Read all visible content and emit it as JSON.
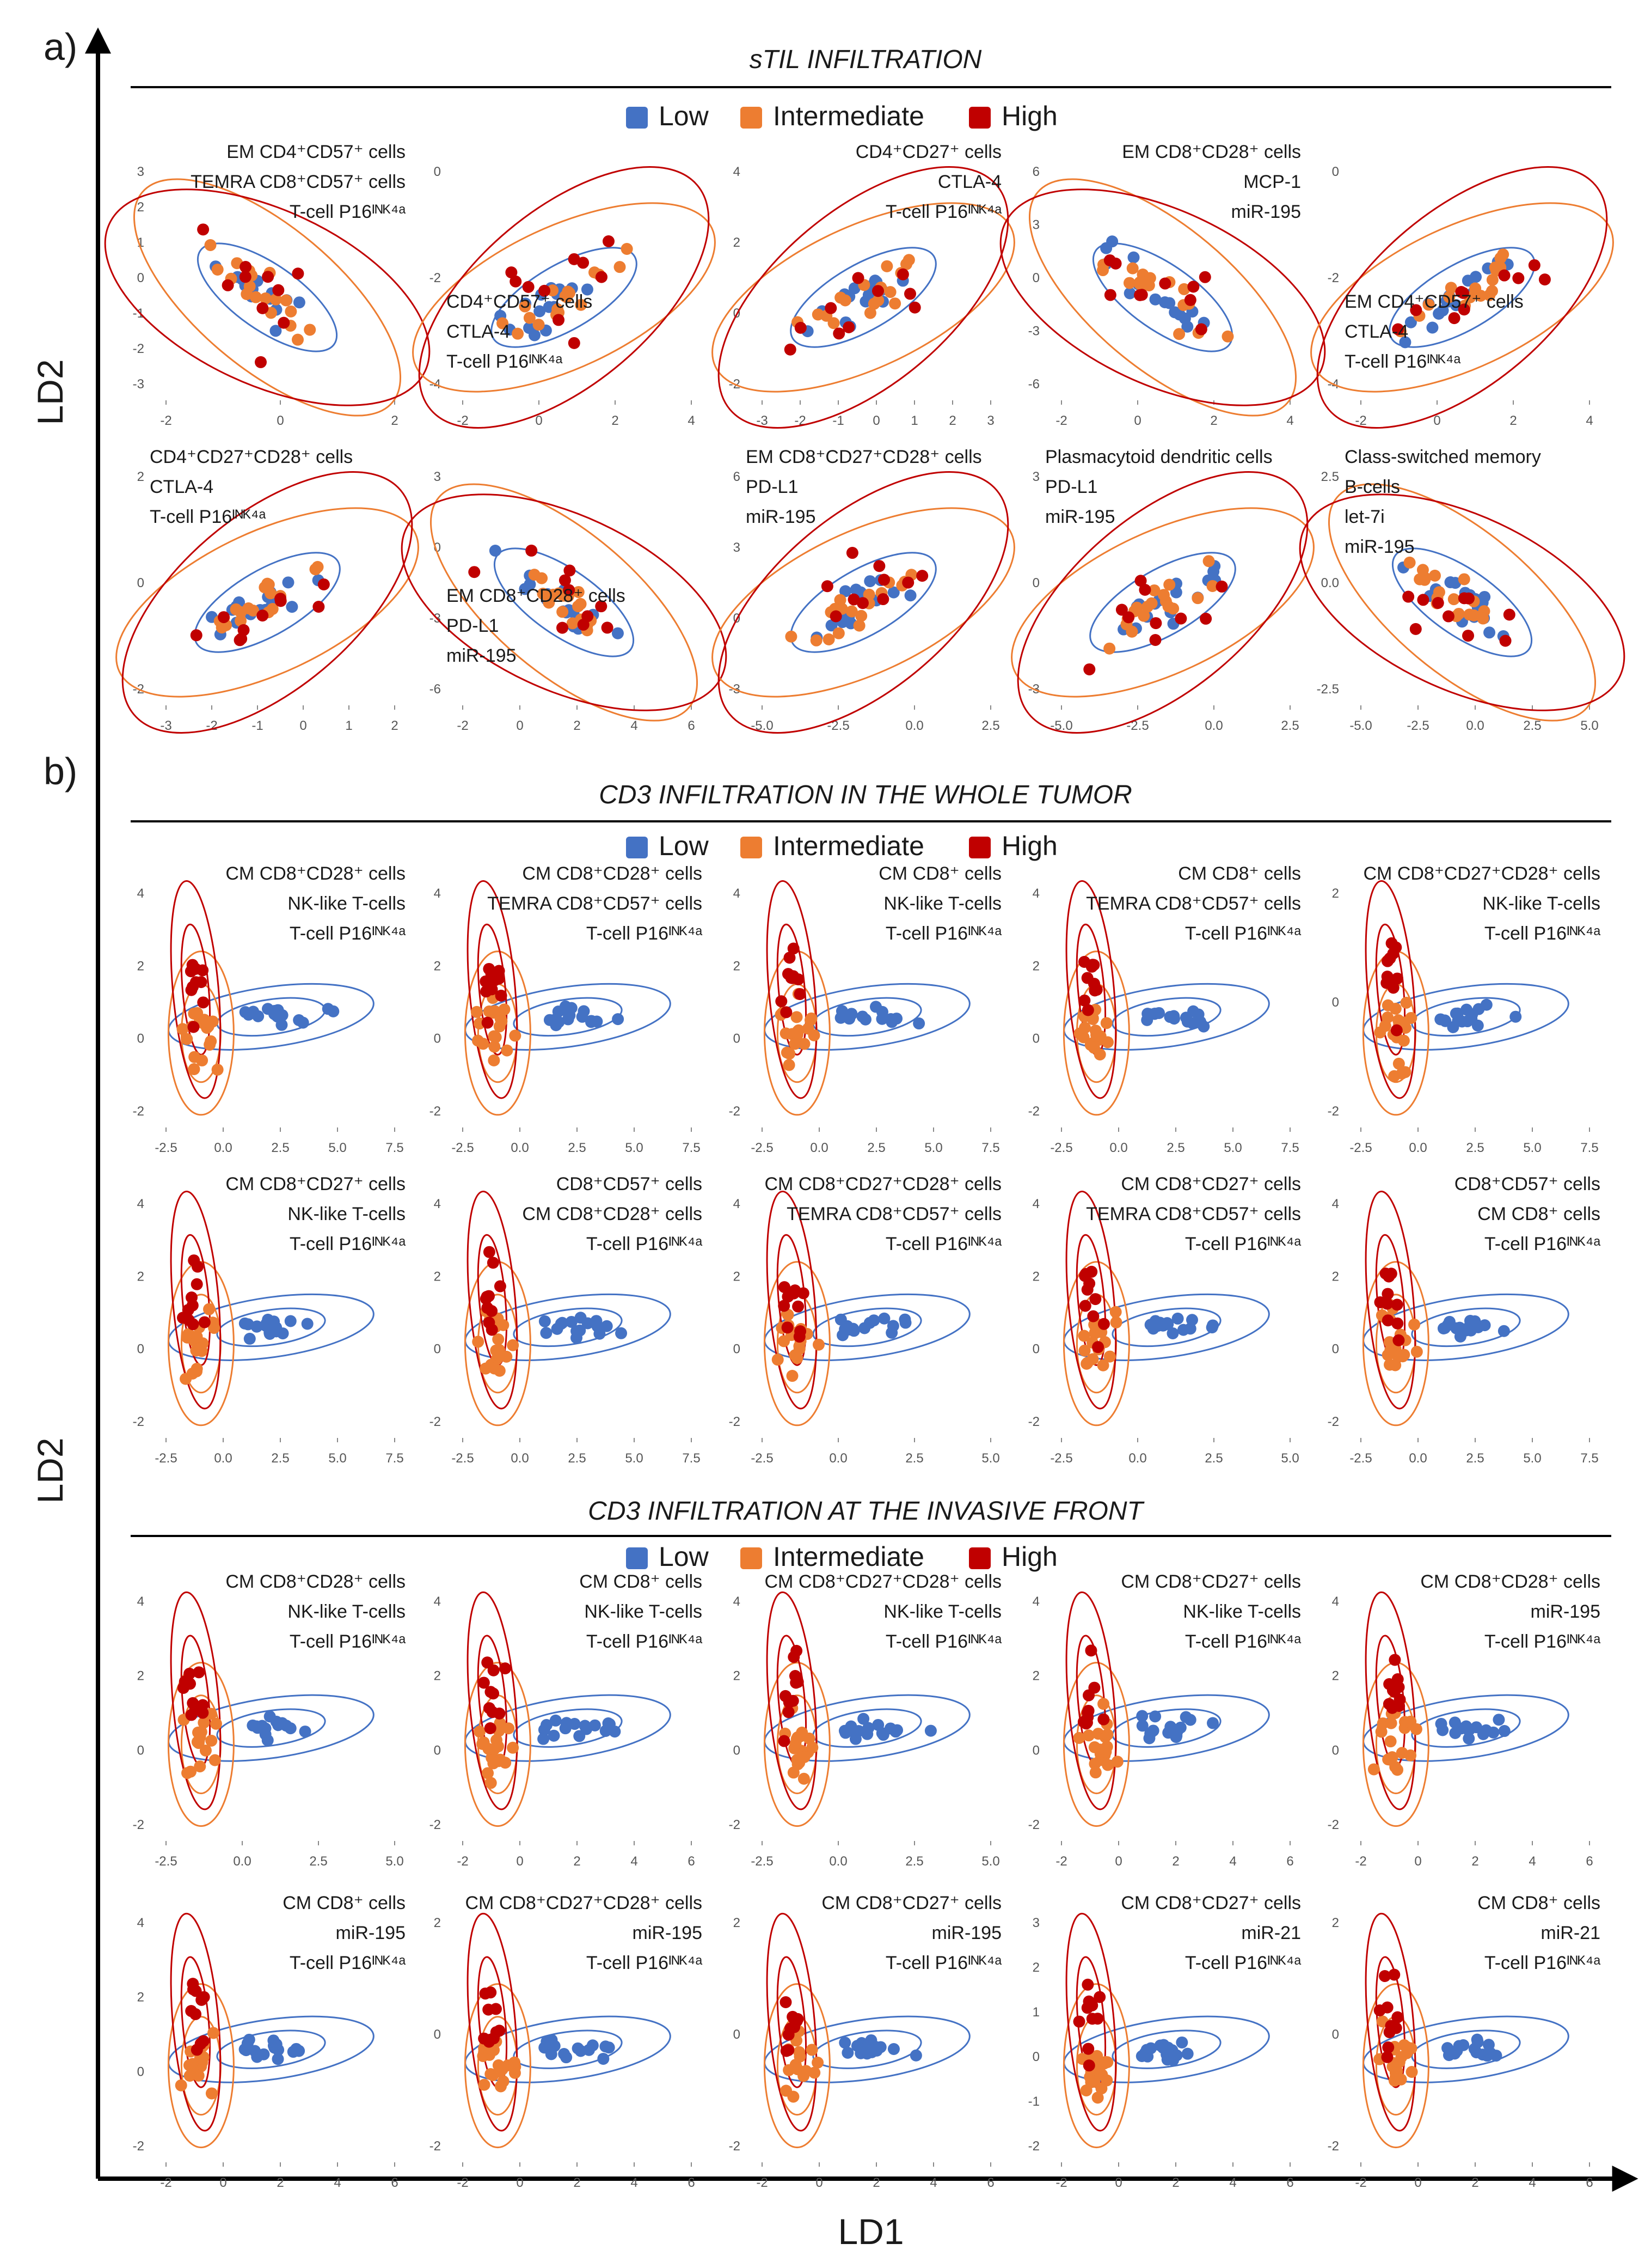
{
  "figure": {
    "axis_x_label": "LD1",
    "axis_y_label": "LD2",
    "legend_labels": [
      "Low",
      "Intermediate",
      "High"
    ],
    "colors": {
      "low": "#4472C4",
      "intermediate": "#ED7D31",
      "high": "#C00000",
      "axis": "#000000",
      "text": "#1a1a1a",
      "tick": "#555555"
    }
  },
  "chart_data": [
    {
      "panel": "a)",
      "title": "sTIL INFILTRATION",
      "type": "scatter",
      "charts": [
        {
          "labels": [
            "EM CD4⁺CD57⁺ cells",
            "TEMRA CD8⁺CD57⁺ cells",
            "T-cell P16ᴵᴺᴷ⁴ᵃ"
          ],
          "xticks": [
            "-2",
            "0",
            "2"
          ],
          "yticks": [
            "3",
            "2",
            "1",
            "0",
            "-1",
            "-2",
            "-3"
          ]
        },
        {
          "labels": [
            "CD4⁺CD57⁺ cells",
            "CTLA-4",
            "T-cell P16ᴵᴺᴷ⁴ᵃ"
          ],
          "xticks": [
            "-2",
            "0",
            "2",
            "4"
          ],
          "yticks": [
            "0",
            "-2",
            "-4"
          ]
        },
        {
          "labels": [
            "CD4⁺CD27⁺ cells",
            "CTLA-4",
            "T-cell P16ᴵᴺᴷ⁴ᵃ"
          ],
          "xticks": [
            "-3",
            "-2",
            "-1",
            "0",
            "1",
            "2",
            "3"
          ],
          "yticks": [
            "4",
            "2",
            "0",
            "-2"
          ]
        },
        {
          "labels": [
            "EM CD8⁺CD28⁺ cells",
            "MCP-1",
            "miR-195"
          ],
          "xticks": [
            "-2",
            "0",
            "2",
            "4"
          ],
          "yticks": [
            "6",
            "3",
            "0",
            "-3",
            "-6"
          ]
        },
        {
          "labels": [
            "EM CD4⁺CD57⁺ cells",
            "CTLA-4",
            "T-cell P16ᴵᴺᴷ⁴ᵃ"
          ],
          "xticks": [
            "-2",
            "0",
            "2",
            "4"
          ],
          "yticks": [
            "0",
            "-2",
            "-4"
          ]
        },
        {
          "labels": [
            "CD4⁺CD27⁺CD28⁺ cells",
            "CTLA-4",
            "T-cell P16ᴵᴺᴷ⁴ᵃ"
          ],
          "xticks": [
            "-3",
            "-2",
            "-1",
            "0",
            "1",
            "2"
          ],
          "yticks": [
            "2",
            "0",
            "-2"
          ]
        },
        {
          "labels": [
            "EM CD8⁺CD28⁺ cells",
            "PD-L1",
            "miR-195"
          ],
          "xticks": [
            "-2",
            "0",
            "2",
            "4",
            "6"
          ],
          "yticks": [
            "3",
            "0",
            "-3",
            "-6"
          ]
        },
        {
          "labels": [
            "EM CD8⁺CD27⁺CD28⁺ cells",
            "PD-L1",
            "miR-195"
          ],
          "xticks": [
            "-5.0",
            "-2.5",
            "0.0",
            "2.5"
          ],
          "yticks": [
            "6",
            "3",
            "0",
            "-3"
          ]
        },
        {
          "labels": [
            "Plasmacytoid dendritic cells",
            "PD-L1",
            "miR-195"
          ],
          "xticks": [
            "-5.0",
            "-2.5",
            "0.0",
            "2.5"
          ],
          "yticks": [
            "3",
            "0",
            "-3"
          ]
        },
        {
          "labels": [
            "Class-switched memory",
            "B-cells",
            "let-7i",
            "miR-195"
          ],
          "xticks": [
            "-5.0",
            "-2.5",
            "0.0",
            "2.5",
            "5.0"
          ],
          "yticks": [
            "2.5",
            "0.0",
            "-2.5"
          ]
        }
      ]
    },
    {
      "panel": "b)",
      "title": "CD3 INFILTRATION IN THE WHOLE TUMOR",
      "type": "scatter",
      "charts": [
        {
          "labels": [
            "CM CD8⁺CD28⁺ cells",
            "NK-like T-cells",
            "T-cell P16ᴵᴺᴷ⁴ᵃ"
          ],
          "xticks": [
            "-2.5",
            "0.0",
            "2.5",
            "5.0",
            "7.5"
          ],
          "yticks": [
            "4",
            "2",
            "0",
            "-2"
          ]
        },
        {
          "labels": [
            "CM CD8⁺CD28⁺ cells",
            "TEMRA CD8⁺CD57⁺ cells",
            "T-cell P16ᴵᴺᴷ⁴ᵃ"
          ],
          "xticks": [
            "-2.5",
            "0.0",
            "2.5",
            "5.0",
            "7.5"
          ],
          "yticks": [
            "4",
            "2",
            "0",
            "-2"
          ]
        },
        {
          "labels": [
            "CM CD8⁺ cells",
            "NK-like T-cells",
            "T-cell P16ᴵᴺᴷ⁴ᵃ"
          ],
          "xticks": [
            "-2.5",
            "0.0",
            "2.5",
            "5.0",
            "7.5"
          ],
          "yticks": [
            "4",
            "2",
            "0",
            "-2"
          ]
        },
        {
          "labels": [
            "CM CD8⁺ cells",
            "TEMRA CD8⁺CD57⁺ cells",
            "T-cell P16ᴵᴺᴷ⁴ᵃ"
          ],
          "xticks": [
            "-2.5",
            "0.0",
            "2.5",
            "5.0",
            "7.5"
          ],
          "yticks": [
            "4",
            "2",
            "0",
            "-2"
          ]
        },
        {
          "labels": [
            "CM CD8⁺CD27⁺CD28⁺ cells",
            "NK-like T-cells",
            "T-cell P16ᴵᴺᴷ⁴ᵃ"
          ],
          "xticks": [
            "-2.5",
            "0.0",
            "2.5",
            "5.0",
            "7.5"
          ],
          "yticks": [
            "2",
            "0",
            "-2"
          ]
        },
        {
          "labels": [
            "CM CD8⁺CD27⁺ cells",
            "NK-like T-cells",
            "T-cell P16ᴵᴺᴷ⁴ᵃ"
          ],
          "xticks": [
            "-2.5",
            "0.0",
            "2.5",
            "5.0",
            "7.5"
          ],
          "yticks": [
            "4",
            "2",
            "0",
            "-2"
          ]
        },
        {
          "labels": [
            "CD8⁺CD57⁺ cells",
            "CM CD8⁺CD28⁺ cells",
            "T-cell P16ᴵᴺᴷ⁴ᵃ"
          ],
          "xticks": [
            "-2.5",
            "0.0",
            "2.5",
            "5.0",
            "7.5"
          ],
          "yticks": [
            "4",
            "2",
            "0",
            "-2"
          ]
        },
        {
          "labels": [
            "CM CD8⁺CD27⁺CD28⁺ cells",
            "TEMRA CD8⁺CD57⁺ cells",
            "T-cell P16ᴵᴺᴷ⁴ᵃ"
          ],
          "xticks": [
            "-2.5",
            "0.0",
            "2.5",
            "5.0"
          ],
          "yticks": [
            "4",
            "2",
            "0",
            "-2"
          ]
        },
        {
          "labels": [
            "CM CD8⁺CD27⁺ cells",
            "TEMRA CD8⁺CD57⁺ cells",
            "T-cell P16ᴵᴺᴷ⁴ᵃ"
          ],
          "xticks": [
            "-2.5",
            "0.0",
            "2.5",
            "5.0"
          ],
          "yticks": [
            "4",
            "2",
            "0",
            "-2"
          ]
        },
        {
          "labels": [
            "CD8⁺CD57⁺ cells",
            "CM CD8⁺ cells",
            "T-cell P16ᴵᴺᴷ⁴ᵃ"
          ],
          "xticks": [
            "-2.5",
            "0.0",
            "2.5",
            "5.0",
            "7.5"
          ],
          "yticks": [
            "4",
            "2",
            "0",
            "-2"
          ]
        }
      ]
    },
    {
      "panel": "",
      "title": "CD3 INFILTRATION AT THE INVASIVE FRONT",
      "type": "scatter",
      "charts": [
        {
          "labels": [
            "CM CD8⁺CD28⁺ cells",
            "NK-like T-cells",
            "T-cell P16ᴵᴺᴷ⁴ᵃ"
          ],
          "xticks": [
            "-2.5",
            "0.0",
            "2.5",
            "5.0"
          ],
          "yticks": [
            "4",
            "2",
            "0",
            "-2"
          ]
        },
        {
          "labels": [
            "CM CD8⁺ cells",
            "NK-like T-cells",
            "T-cell P16ᴵᴺᴷ⁴ᵃ"
          ],
          "xticks": [
            "-2",
            "0",
            "2",
            "4",
            "6"
          ],
          "yticks": [
            "4",
            "2",
            "0",
            "-2"
          ]
        },
        {
          "labels": [
            "CM CD8⁺CD27⁺CD28⁺ cells",
            "NK-like T-cells",
            "T-cell P16ᴵᴺᴷ⁴ᵃ"
          ],
          "xticks": [
            "-2.5",
            "0.0",
            "2.5",
            "5.0"
          ],
          "yticks": [
            "4",
            "2",
            "0",
            "-2"
          ]
        },
        {
          "labels": [
            "CM CD8⁺CD27⁺ cells",
            "NK-like T-cells",
            "T-cell P16ᴵᴺᴷ⁴ᵃ"
          ],
          "xticks": [
            "-2",
            "0",
            "2",
            "4",
            "6"
          ],
          "yticks": [
            "4",
            "2",
            "0",
            "-2"
          ]
        },
        {
          "labels": [
            "CM CD8⁺CD28⁺ cells",
            "miR-195",
            "T-cell P16ᴵᴺᴷ⁴ᵃ"
          ],
          "xticks": [
            "-2",
            "0",
            "2",
            "4",
            "6"
          ],
          "yticks": [
            "4",
            "2",
            "0",
            "-2"
          ]
        },
        {
          "labels": [
            "CM CD8⁺ cells",
            "miR-195",
            "T-cell P16ᴵᴺᴷ⁴ᵃ"
          ],
          "xticks": [
            "-2",
            "0",
            "2",
            "4",
            "6"
          ],
          "yticks": [
            "4",
            "2",
            "0",
            "-2"
          ]
        },
        {
          "labels": [
            "CM CD8⁺CD27⁺CD28⁺ cells",
            "miR-195",
            "T-cell P16ᴵᴺᴷ⁴ᵃ"
          ],
          "xticks": [
            "-2",
            "0",
            "2",
            "4",
            "6"
          ],
          "yticks": [
            "2",
            "0",
            "-2"
          ]
        },
        {
          "labels": [
            "CM CD8⁺CD27⁺ cells",
            "miR-195",
            "T-cell P16ᴵᴺᴷ⁴ᵃ"
          ],
          "xticks": [
            "-2",
            "0",
            "2",
            "4",
            "6"
          ],
          "yticks": [
            "2",
            "0",
            "-2"
          ]
        },
        {
          "labels": [
            "CM CD8⁺CD27⁺ cells",
            "miR-21",
            "T-cell P16ᴵᴺᴷ⁴ᵃ"
          ],
          "xticks": [
            "-2",
            "0",
            "2",
            "4",
            "6"
          ],
          "yticks": [
            "3",
            "2",
            "1",
            "0",
            "-1",
            "-2"
          ]
        },
        {
          "labels": [
            "CM CD8⁺ cells",
            "miR-21",
            "T-cell P16ᴵᴺᴷ⁴ᵃ"
          ],
          "xticks": [
            "-2",
            "0",
            "2",
            "4",
            "6"
          ],
          "yticks": [
            "2",
            "0",
            "-2"
          ]
        }
      ]
    }
  ]
}
